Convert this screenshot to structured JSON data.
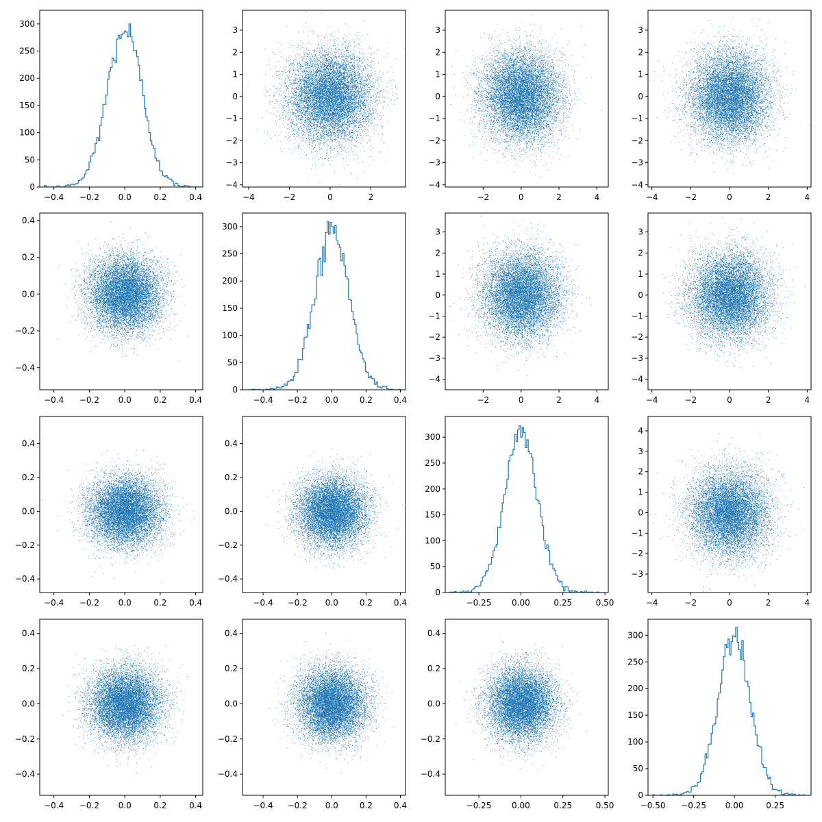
{
  "figure": {
    "background": "#ffffff",
    "accent_color": "#1f77b4",
    "layout": "4x4 scatter-matrix grid",
    "grid": false
  },
  "chart_data": [
    {
      "panel": "r1c1",
      "type": "histogram",
      "variable": 1,
      "xlim": [
        -0.48,
        0.44
      ],
      "ylim": [
        0,
        325
      ],
      "xticks": [
        -0.4,
        -0.2,
        0.0,
        0.2,
        0.4
      ],
      "xtick_labels": [
        "−0.4",
        "−0.2",
        "0.0",
        "0.2",
        "0.4"
      ],
      "yticks": [
        0,
        50,
        100,
        150,
        200,
        250,
        300
      ],
      "ytick_labels": [
        "0",
        "50",
        "100",
        "150",
        "200",
        "250",
        "300"
      ],
      "bins": 100,
      "mean": 0.0,
      "std": 0.1,
      "peak_count": 308,
      "sample_size": 10000
    },
    {
      "panel": "r1c2",
      "type": "scatter",
      "x_variable": 2,
      "y_variable": 1,
      "xlim": [
        -4.3,
        3.7
      ],
      "ylim": [
        -4.1,
        3.9
      ],
      "xticks": [
        -4,
        -2,
        0,
        2
      ],
      "xtick_labels": [
        "−4",
        "−2",
        "0",
        "2"
      ],
      "yticks": [
        -4,
        -3,
        -2,
        -1,
        0,
        1,
        2,
        3
      ],
      "ytick_labels": [
        "−4",
        "−3",
        "−2",
        "−1",
        "0",
        "1",
        "2",
        "3"
      ],
      "x_std": 1.0,
      "y_std": 1.0,
      "n_points": 10000
    },
    {
      "panel": "r1c3",
      "type": "scatter",
      "x_variable": 3,
      "y_variable": 1,
      "xlim": [
        -4.0,
        4.6
      ],
      "ylim": [
        -4.1,
        3.9
      ],
      "xticks": [
        -2,
        0,
        2,
        4
      ],
      "xtick_labels": [
        "−2",
        "0",
        "2",
        "4"
      ],
      "yticks": [
        -4,
        -3,
        -2,
        -1,
        0,
        1,
        2,
        3
      ],
      "ytick_labels": [
        "−4",
        "−3",
        "−2",
        "−1",
        "0",
        "1",
        "2",
        "3"
      ],
      "x_std": 1.0,
      "y_std": 1.0,
      "n_points": 10000
    },
    {
      "panel": "r1c4",
      "type": "scatter",
      "x_variable": 4,
      "y_variable": 1,
      "xlim": [
        -4.2,
        4.2
      ],
      "ylim": [
        -4.1,
        3.9
      ],
      "xticks": [
        -4,
        -2,
        0,
        2,
        4
      ],
      "xtick_labels": [
        "−4",
        "−2",
        "0",
        "2",
        "4"
      ],
      "yticks": [
        -4,
        -3,
        -2,
        -1,
        0,
        1,
        2,
        3
      ],
      "ytick_labels": [
        "−4",
        "−3",
        "−2",
        "−1",
        "0",
        "1",
        "2",
        "3"
      ],
      "x_std": 1.0,
      "y_std": 1.0,
      "n_points": 10000
    },
    {
      "panel": "r2c1",
      "type": "scatter",
      "x_variable": 1,
      "y_variable": 2,
      "xlim": [
        -0.48,
        0.44
      ],
      "ylim": [
        -0.52,
        0.44
      ],
      "xticks": [
        -0.4,
        -0.2,
        0.0,
        0.2,
        0.4
      ],
      "xtick_labels": [
        "−0.4",
        "−0.2",
        "0.0",
        "0.2",
        "0.4"
      ],
      "yticks": [
        -0.4,
        -0.2,
        0.0,
        0.2,
        0.4
      ],
      "ytick_labels": [
        "−0.4",
        "−0.2",
        "0.0",
        "0.2",
        "0.4"
      ],
      "x_std": 0.1,
      "y_std": 0.1,
      "n_points": 10000
    },
    {
      "panel": "r2c2",
      "type": "histogram",
      "variable": 2,
      "xlim": [
        -0.52,
        0.43
      ],
      "ylim": [
        0,
        325
      ],
      "xticks": [
        -0.4,
        -0.2,
        0.0,
        0.2,
        0.4
      ],
      "xtick_labels": [
        "−0.4",
        "−0.2",
        "0.0",
        "0.2",
        "0.4"
      ],
      "yticks": [
        0,
        50,
        100,
        150,
        200,
        250,
        300
      ],
      "ytick_labels": [
        "0",
        "50",
        "100",
        "150",
        "200",
        "250",
        "300"
      ],
      "bins": 100,
      "mean": 0.0,
      "std": 0.1,
      "peak_count": 310,
      "sample_size": 10000
    },
    {
      "panel": "r2c3",
      "type": "scatter",
      "x_variable": 3,
      "y_variable": 2,
      "xlim": [
        -4.0,
        4.6
      ],
      "ylim": [
        -4.5,
        3.9
      ],
      "xticks": [
        -2,
        0,
        2,
        4
      ],
      "xtick_labels": [
        "−2",
        "0",
        "2",
        "4"
      ],
      "yticks": [
        -4,
        -3,
        -2,
        -1,
        0,
        1,
        2,
        3
      ],
      "ytick_labels": [
        "−4",
        "−3",
        "−2",
        "−1",
        "0",
        "1",
        "2",
        "3"
      ],
      "x_std": 1.0,
      "y_std": 1.0,
      "n_points": 10000
    },
    {
      "panel": "r2c4",
      "type": "scatter",
      "x_variable": 4,
      "y_variable": 2,
      "xlim": [
        -4.2,
        4.2
      ],
      "ylim": [
        -4.5,
        3.9
      ],
      "xticks": [
        -4,
        -2,
        0,
        2,
        4
      ],
      "xtick_labels": [
        "−4",
        "−2",
        "0",
        "2",
        "4"
      ],
      "yticks": [
        -4,
        -3,
        -2,
        -1,
        0,
        1,
        2,
        3
      ],
      "ytick_labels": [
        "−4",
        "−3",
        "−2",
        "−1",
        "0",
        "1",
        "2",
        "3"
      ],
      "x_std": 1.0,
      "y_std": 1.0,
      "n_points": 10000
    },
    {
      "panel": "r3c1",
      "type": "scatter",
      "x_variable": 1,
      "y_variable": 3,
      "xlim": [
        -0.48,
        0.44
      ],
      "ylim": [
        -0.48,
        0.56
      ],
      "xticks": [
        -0.4,
        -0.2,
        0.0,
        0.2,
        0.4
      ],
      "xtick_labels": [
        "−0.4",
        "−0.2",
        "0.0",
        "0.2",
        "0.4"
      ],
      "yticks": [
        -0.4,
        -0.2,
        0.0,
        0.2,
        0.4
      ],
      "ytick_labels": [
        "−0.4",
        "−0.2",
        "0.0",
        "0.2",
        "0.4"
      ],
      "x_std": 0.1,
      "y_std": 0.1,
      "n_points": 10000
    },
    {
      "panel": "r3c2",
      "type": "scatter",
      "x_variable": 2,
      "y_variable": 3,
      "xlim": [
        -0.52,
        0.43
      ],
      "ylim": [
        -0.48,
        0.56
      ],
      "xticks": [
        -0.4,
        -0.2,
        0.0,
        0.2,
        0.4
      ],
      "xtick_labels": [
        "−0.4",
        "−0.2",
        "0.0",
        "0.2",
        "0.4"
      ],
      "yticks": [
        -0.4,
        -0.2,
        0.0,
        0.2,
        0.4
      ],
      "ytick_labels": [
        "−0.4",
        "−0.2",
        "0.0",
        "0.2",
        "0.4"
      ],
      "x_std": 0.1,
      "y_std": 0.1,
      "n_points": 10000
    },
    {
      "panel": "r3c3",
      "type": "histogram",
      "variable": 3,
      "xlim": [
        -0.45,
        0.52
      ],
      "ylim": [
        0,
        340
      ],
      "xticks": [
        -0.25,
        0.0,
        0.25,
        0.5
      ],
      "xtick_labels": [
        "−0.25",
        "0.00",
        "0.25",
        "0.50"
      ],
      "yticks": [
        0,
        50,
        100,
        150,
        200,
        250,
        300
      ],
      "ytick_labels": [
        "0",
        "50",
        "100",
        "150",
        "200",
        "250",
        "300"
      ],
      "bins": 100,
      "mean": 0.0,
      "std": 0.1,
      "peak_count": 325,
      "sample_size": 10000
    },
    {
      "panel": "r3c4",
      "type": "scatter",
      "x_variable": 4,
      "y_variable": 3,
      "xlim": [
        -4.2,
        4.2
      ],
      "ylim": [
        -3.9,
        4.7
      ],
      "xticks": [
        -4,
        -2,
        0,
        2,
        4
      ],
      "xtick_labels": [
        "−4",
        "−2",
        "0",
        "2",
        "4"
      ],
      "yticks": [
        -3,
        -2,
        -1,
        0,
        1,
        2,
        3,
        4
      ],
      "ytick_labels": [
        "−3",
        "−2",
        "−1",
        "0",
        "1",
        "2",
        "3",
        "4"
      ],
      "x_std": 1.0,
      "y_std": 1.0,
      "n_points": 10000
    },
    {
      "panel": "r4c1",
      "type": "scatter",
      "x_variable": 1,
      "y_variable": 4,
      "xlim": [
        -0.48,
        0.44
      ],
      "ylim": [
        -0.52,
        0.48
      ],
      "xticks": [
        -0.4,
        -0.2,
        0.0,
        0.2,
        0.4
      ],
      "xtick_labels": [
        "−0.4",
        "−0.2",
        "0.0",
        "0.2",
        "0.4"
      ],
      "yticks": [
        -0.4,
        -0.2,
        0.0,
        0.2,
        0.4
      ],
      "ytick_labels": [
        "−0.4",
        "−0.2",
        "0.0",
        "0.2",
        "0.4"
      ],
      "x_std": 0.1,
      "y_std": 0.1,
      "n_points": 10000
    },
    {
      "panel": "r4c2",
      "type": "scatter",
      "x_variable": 2,
      "y_variable": 4,
      "xlim": [
        -0.52,
        0.43
      ],
      "ylim": [
        -0.52,
        0.48
      ],
      "xticks": [
        -0.4,
        -0.2,
        0.0,
        0.2,
        0.4
      ],
      "xtick_labels": [
        "−0.4",
        "−0.2",
        "0.0",
        "0.2",
        "0.4"
      ],
      "yticks": [
        -0.4,
        -0.2,
        0.0,
        0.2,
        0.4
      ],
      "ytick_labels": [
        "−0.4",
        "−0.2",
        "0.0",
        "0.2",
        "0.4"
      ],
      "x_std": 0.1,
      "y_std": 0.1,
      "n_points": 10000
    },
    {
      "panel": "r4c3",
      "type": "scatter",
      "x_variable": 3,
      "y_variable": 4,
      "xlim": [
        -0.45,
        0.52
      ],
      "ylim": [
        -0.52,
        0.48
      ],
      "xticks": [
        -0.25,
        0.0,
        0.25,
        0.5
      ],
      "xtick_labels": [
        "−0.25",
        "0.00",
        "0.25",
        "0.50"
      ],
      "yticks": [
        -0.4,
        -0.2,
        0.0,
        0.2,
        0.4
      ],
      "ytick_labels": [
        "−0.4",
        "−0.2",
        "0.0",
        "0.2",
        "0.4"
      ],
      "x_std": 0.1,
      "y_std": 0.1,
      "n_points": 10000
    },
    {
      "panel": "r4c4",
      "type": "histogram",
      "variable": 4,
      "xlim": [
        -0.53,
        0.47
      ],
      "ylim": [
        0,
        330
      ],
      "xticks": [
        -0.5,
        -0.25,
        0.0,
        0.25
      ],
      "xtick_labels": [
        "−0.50",
        "−0.25",
        "0.00",
        "0.25"
      ],
      "yticks": [
        0,
        50,
        100,
        150,
        200,
        250,
        300
      ],
      "ytick_labels": [
        "0",
        "50",
        "100",
        "150",
        "200",
        "250",
        "300"
      ],
      "bins": 100,
      "mean": 0.0,
      "std": 0.1,
      "peak_count": 315,
      "sample_size": 10000
    }
  ]
}
